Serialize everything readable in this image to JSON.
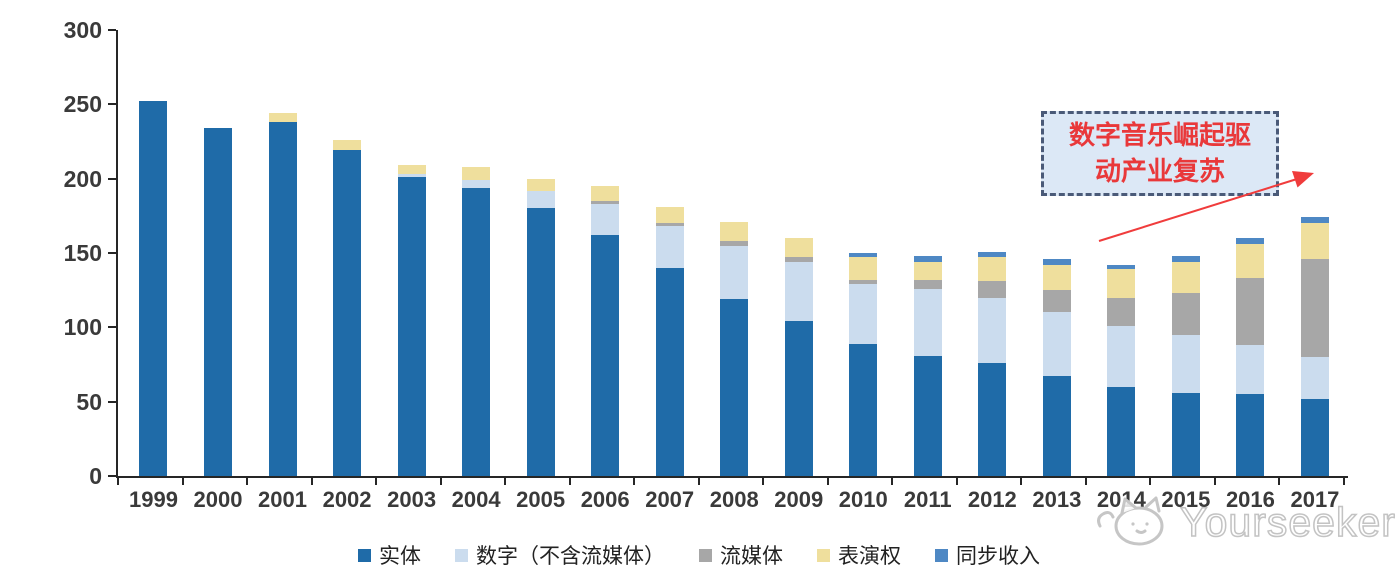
{
  "chart_data": {
    "type": "bar",
    "stacked": true,
    "categories": [
      "1999",
      "2000",
      "2001",
      "2002",
      "2003",
      "2004",
      "2005",
      "2006",
      "2007",
      "2008",
      "2009",
      "2010",
      "2011",
      "2012",
      "2013",
      "2014",
      "2015",
      "2016",
      "2017"
    ],
    "series": [
      {
        "name": "实体",
        "color": "#1F6BA8",
        "values": [
          252,
          234,
          238,
          219,
          201,
          194,
          180,
          162,
          140,
          119,
          104,
          89,
          81,
          76,
          67,
          60,
          56,
          55,
          52
        ]
      },
      {
        "name": "数字（不含流媒体）",
        "color": "#CBDCEE",
        "values": [
          0,
          0,
          0,
          0,
          2,
          5,
          12,
          21,
          28,
          36,
          40,
          40,
          45,
          44,
          43,
          41,
          39,
          33,
          28
        ]
      },
      {
        "name": "流媒体",
        "color": "#A7A7A7",
        "values": [
          0,
          0,
          0,
          0,
          0,
          0,
          0,
          2,
          2,
          3,
          3,
          3,
          6,
          11,
          15,
          19,
          28,
          45,
          66
        ]
      },
      {
        "name": "表演权",
        "color": "#EFDF9D",
        "values": [
          0,
          0,
          6,
          7,
          6,
          9,
          8,
          10,
          11,
          13,
          13,
          15,
          12,
          16,
          17,
          19,
          21,
          23,
          24
        ]
      },
      {
        "name": "同步收入",
        "color": "#4E88C4",
        "values": [
          0,
          0,
          0,
          0,
          0,
          0,
          0,
          0,
          0,
          0,
          0,
          3,
          4,
          4,
          4,
          3,
          4,
          4,
          4
        ]
      }
    ],
    "ylim": [
      0,
      300
    ],
    "yticks": [
      0,
      50,
      100,
      150,
      200,
      250,
      300
    ],
    "xlabel": "",
    "ylabel": "",
    "title": "",
    "grid": false,
    "legend_position": "bottom"
  },
  "annotation": {
    "lines": [
      "数字音乐崛起驱",
      "动产业复苏"
    ],
    "text_color": "#e9383a",
    "box_fill": "#dce8f6",
    "box_border_color": "#4a5a78",
    "arrow_color": "#f03c3c"
  },
  "watermark": {
    "text": "Yourseeker",
    "logo": "cat-mascot-icon",
    "color": "#c3c3c3"
  },
  "axis_style": {
    "line_color": "#262626",
    "label_color": "#3a3a3a"
  }
}
